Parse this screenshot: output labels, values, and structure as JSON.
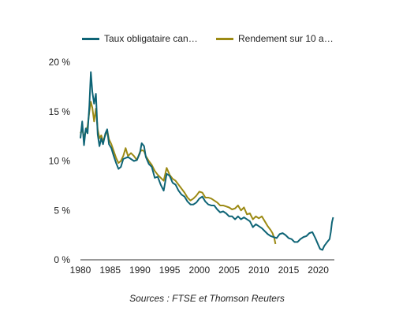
{
  "legend": {
    "series1_label": "Taux obligataire can…",
    "series2_label": "Rendement sur 10 a…"
  },
  "source_text": "Sources : FTSE et Thomson Reuters",
  "chart_data": {
    "type": "line",
    "xlim": [
      1980,
      2022.7
    ],
    "ylim": [
      0,
      20
    ],
    "x_ticks": [
      1980,
      1985,
      1990,
      1995,
      2000,
      2005,
      2010,
      2015,
      2020
    ],
    "x_tick_labels": [
      "1980",
      "1985",
      "1990",
      "1995",
      "2000",
      "2005",
      "2010",
      "2015",
      "2020"
    ],
    "y_ticks": [
      0,
      5,
      10,
      15,
      20
    ],
    "y_tick_labels": [
      "0 %",
      "5 %",
      "10 %",
      "15 %",
      "20 %"
    ],
    "grid": false,
    "legend_position": "top",
    "colors": [
      "#0e6476",
      "#9c8a14"
    ],
    "series": [
      {
        "name": "Taux obligataire can…",
        "x": [
          1980.0,
          1980.3,
          1980.6,
          1980.9,
          1981.2,
          1981.5,
          1981.75,
          1982.0,
          1982.3,
          1982.6,
          1982.9,
          1983.2,
          1983.5,
          1983.8,
          1984.2,
          1984.5,
          1984.8,
          1985.2,
          1985.6,
          1986.0,
          1986.4,
          1986.8,
          1987.2,
          1987.6,
          1988.0,
          1988.5,
          1989.0,
          1989.5,
          1990.0,
          1990.3,
          1990.7,
          1991.0,
          1991.5,
          1992.0,
          1992.5,
          1993.0,
          1993.5,
          1994.0,
          1994.5,
          1995.0,
          1995.5,
          1996.0,
          1996.5,
          1997.0,
          1997.5,
          1998.0,
          1998.5,
          1999.0,
          1999.5,
          2000.0,
          2000.5,
          2001.0,
          2001.5,
          2002.0,
          2002.5,
          2003.0,
          2003.5,
          2004.0,
          2004.5,
          2005.0,
          2005.5,
          2006.0,
          2006.5,
          2007.0,
          2007.5,
          2008.0,
          2008.5,
          2009.0,
          2009.5,
          2010.0,
          2010.5,
          2011.0,
          2011.5,
          2012.0,
          2012.5,
          2013.0,
          2013.5,
          2014.0,
          2014.5,
          2015.0,
          2015.5,
          2016.0,
          2016.5,
          2017.0,
          2017.5,
          2018.0,
          2018.5,
          2019.0,
          2019.5,
          2020.0,
          2020.3,
          2020.7,
          2021.0,
          2021.5,
          2021.9,
          2022.1,
          2022.3,
          2022.5
        ],
        "values": [
          12.3,
          14.0,
          11.6,
          13.3,
          12.8,
          15.6,
          19.0,
          17.0,
          15.8,
          16.8,
          12.7,
          11.5,
          12.3,
          11.7,
          12.8,
          13.2,
          11.7,
          11.3,
          10.5,
          9.8,
          9.2,
          9.4,
          10.2,
          10.3,
          10.4,
          10.2,
          10.0,
          10.1,
          10.8,
          11.8,
          11.5,
          10.4,
          9.7,
          9.4,
          8.3,
          8.4,
          7.6,
          7.0,
          8.7,
          8.5,
          7.8,
          7.6,
          7.0,
          6.6,
          6.4,
          5.9,
          5.6,
          5.6,
          5.8,
          6.2,
          6.4,
          5.9,
          5.6,
          5.5,
          5.5,
          5.1,
          4.8,
          4.9,
          4.7,
          4.4,
          4.4,
          4.1,
          4.4,
          4.1,
          4.3,
          4.1,
          3.9,
          3.3,
          3.6,
          3.4,
          3.2,
          2.9,
          2.6,
          2.4,
          2.3,
          2.2,
          2.6,
          2.7,
          2.5,
          2.2,
          2.1,
          1.8,
          1.8,
          2.1,
          2.3,
          2.4,
          2.7,
          2.8,
          2.2,
          1.5,
          1.1,
          1.0,
          1.4,
          1.8,
          2.1,
          2.8,
          3.8,
          4.3
        ]
      },
      {
        "name": "Rendement sur 10 a…",
        "x": [
          1980.0,
          1980.3,
          1980.6,
          1980.9,
          1981.2,
          1981.5,
          1981.75,
          1982.0,
          1982.3,
          1982.6,
          1982.9,
          1983.2,
          1983.5,
          1983.8,
          1984.2,
          1984.5,
          1984.8,
          1985.2,
          1985.6,
          1986.0,
          1986.4,
          1986.8,
          1987.2,
          1987.6,
          1988.0,
          1988.5,
          1989.0,
          1989.5,
          1990.0,
          1990.3,
          1990.7,
          1991.0,
          1991.5,
          1992.0,
          1992.5,
          1993.0,
          1993.5,
          1994.0,
          1994.5,
          1995.0,
          1995.5,
          1996.0,
          1996.5,
          1997.0,
          1997.5,
          1998.0,
          1998.5,
          1999.0,
          1999.5,
          2000.0,
          2000.5,
          2001.0,
          2001.5,
          2002.0,
          2002.5,
          2003.0,
          2003.5,
          2004.0,
          2004.5,
          2005.0,
          2005.5,
          2006.0,
          2006.5,
          2007.0,
          2007.5,
          2008.0,
          2008.5,
          2009.0,
          2009.5,
          2010.0,
          2010.5,
          2011.0,
          2011.5,
          2012.0,
          2012.3,
          2012.6,
          2012.8
        ],
        "values": [
          12.8,
          13.2,
          12.4,
          13.0,
          13.5,
          15.0,
          16.0,
          15.4,
          14.0,
          15.3,
          13.2,
          12.3,
          12.6,
          12.0,
          12.6,
          13.1,
          12.2,
          11.7,
          11.0,
          10.3,
          9.8,
          10.0,
          10.5,
          11.3,
          10.5,
          10.8,
          10.5,
          10.1,
          10.9,
          11.1,
          11.0,
          10.5,
          10.0,
          9.6,
          9.0,
          8.6,
          8.3,
          8.0,
          9.3,
          8.6,
          8.2,
          8.0,
          7.6,
          7.2,
          6.8,
          6.3,
          6.0,
          6.2,
          6.5,
          6.9,
          6.8,
          6.3,
          6.3,
          6.2,
          6.0,
          5.8,
          5.5,
          5.5,
          5.4,
          5.3,
          5.1,
          5.2,
          5.5,
          5.0,
          5.3,
          4.6,
          4.7,
          4.1,
          4.4,
          4.2,
          4.4,
          3.9,
          3.4,
          3.0,
          2.7,
          2.2,
          1.6
        ]
      }
    ]
  }
}
